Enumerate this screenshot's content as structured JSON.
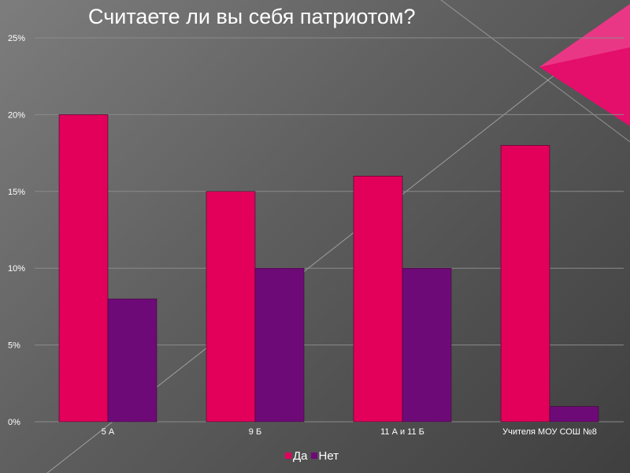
{
  "colors": {
    "yes": "#e2005a",
    "no": "#6e0a78",
    "accent": "#e30f6b"
  },
  "chart_data": {
    "type": "bar",
    "title": "Считаете ли вы себя патриотом?",
    "categories": [
      "5 А",
      "9 Б",
      "11 А и 11 Б",
      "Учителя МОУ СОШ №8"
    ],
    "series": [
      {
        "name": "Да",
        "values": [
          20,
          15,
          16,
          18
        ]
      },
      {
        "name": "Нет",
        "values": [
          8,
          10,
          10,
          1
        ]
      }
    ],
    "ylim": [
      0,
      25
    ],
    "yticks": [
      "0%",
      "5%",
      "10%",
      "15%",
      "20%",
      "25%"
    ],
    "ytick_values": [
      0,
      5,
      10,
      15,
      20,
      25
    ],
    "grid": true,
    "legend_position": "bottom"
  }
}
